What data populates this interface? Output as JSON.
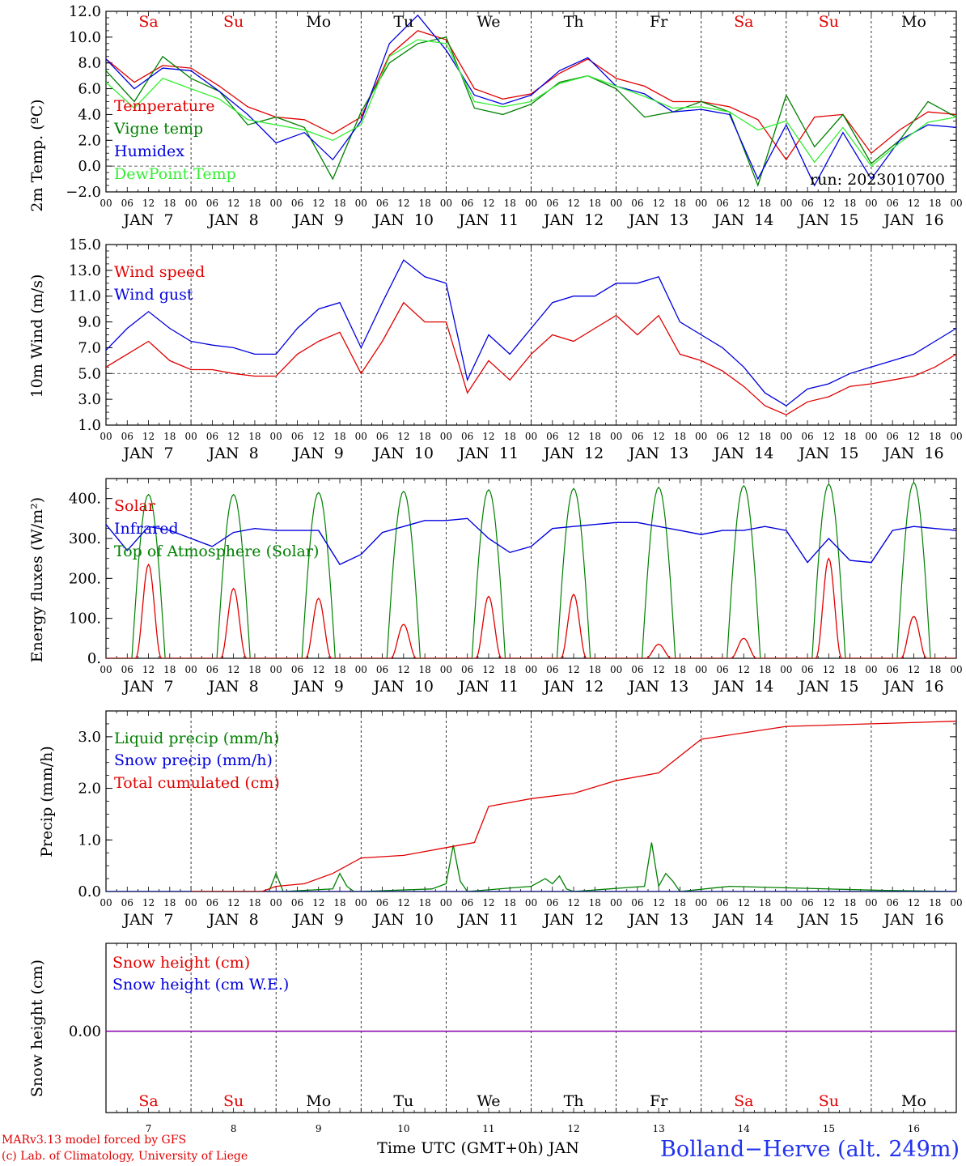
{
  "days": [
    "JAN  7",
    "JAN  8",
    "JAN  9",
    "JAN 10",
    "JAN 11",
    "JAN 12",
    "JAN 13",
    "JAN 14",
    "JAN 15",
    "JAN 16"
  ],
  "weekdays": [
    "Sa",
    "Su",
    "Mo",
    "Tu",
    "We",
    "Th",
    "Fr",
    "Sa",
    "Su",
    "Mo"
  ],
  "weekday_colors": [
    "#e00000",
    "#e00000",
    "#000000",
    "#000000",
    "#000000",
    "#000000",
    "#000000",
    "#e00000",
    "#e00000",
    "#000000"
  ],
  "day_numbers": [
    "7",
    "8",
    "9",
    "10",
    "11",
    "12",
    "13",
    "14",
    "15",
    "16"
  ],
  "hour_ticks": [
    "00",
    "06",
    "12",
    "18"
  ],
  "run_label": "run: 2023010700",
  "footer": {
    "credit_line1": "MARv3.13 model forced by GFS",
    "credit_line2": "(c) Lab. of Climatology, University of Liege",
    "time_label": "Time UTC (GMT+0h) JAN",
    "station": "Bolland−Herve (alt. 249m)"
  },
  "colors": {
    "red": "#e00000",
    "green": "#008000",
    "blue": "#0000dd",
    "lightgreen": "#33ee33",
    "purple": "#8800aa"
  },
  "chart_data": [
    {
      "type": "line",
      "ylabel": "2m Temp. (ºC)",
      "ylim": [
        -2,
        12
      ],
      "yticks": [
        "−2.0",
        "0.0",
        "2.0",
        "4.0",
        "6.0",
        "8.0",
        "10.0",
        "12.0"
      ],
      "yticks_values": [
        -2,
        0,
        2,
        4,
        6,
        8,
        10,
        12
      ],
      "dashed_reference": 0,
      "series": [
        {
          "name": "Temperature",
          "color": "#e00000",
          "x": [
            0,
            8,
            16,
            24,
            32,
            40,
            48,
            56,
            64,
            72,
            80,
            88,
            96,
            104,
            112,
            120,
            128,
            136,
            144,
            152,
            160,
            168,
            176,
            184,
            192,
            200,
            208,
            216,
            224,
            232,
            240
          ],
          "values": [
            8.3,
            6.5,
            7.8,
            7.6,
            6.2,
            4.6,
            3.8,
            3.6,
            2.5,
            3.8,
            8.6,
            10.5,
            9.8,
            6.0,
            5.2,
            5.6,
            7.2,
            8.3,
            6.8,
            6.2,
            5.0,
            5.0,
            4.6,
            3.6,
            0.5,
            3.8,
            4.0,
            1.0,
            2.8,
            4.2,
            4.0
          ]
        },
        {
          "name": "Vigne temp",
          "color": "#008000",
          "x": [
            0,
            8,
            16,
            24,
            32,
            40,
            48,
            56,
            64,
            72,
            80,
            88,
            96,
            104,
            112,
            120,
            128,
            136,
            144,
            152,
            160,
            168,
            176,
            184,
            192,
            200,
            208,
            216,
            224,
            232,
            240
          ],
          "values": [
            7.4,
            5.0,
            8.5,
            6.8,
            5.8,
            3.2,
            3.8,
            3.0,
            -1.0,
            4.2,
            8.0,
            9.5,
            10.0,
            4.5,
            4.0,
            4.8,
            6.5,
            7.0,
            6.0,
            3.8,
            4.2,
            5.0,
            4.2,
            -1.5,
            5.5,
            1.5,
            4.0,
            0.2,
            2.0,
            5.0,
            3.8
          ]
        },
        {
          "name": "Humidex",
          "color": "#0000dd",
          "x": [
            0,
            8,
            16,
            24,
            32,
            40,
            48,
            56,
            64,
            72,
            80,
            88,
            96,
            104,
            112,
            120,
            128,
            136,
            144,
            152,
            160,
            168,
            176,
            184,
            192,
            200,
            208,
            216,
            224,
            232,
            240
          ],
          "values": [
            8.3,
            6.0,
            7.6,
            7.4,
            5.8,
            4.0,
            1.8,
            2.6,
            0.5,
            3.5,
            9.5,
            11.7,
            9.0,
            5.5,
            4.8,
            5.5,
            7.4,
            8.4,
            6.2,
            5.6,
            4.2,
            4.4,
            4.0,
            -1.0,
            3.2,
            -1.5,
            2.6,
            -1.0,
            2.0,
            3.2,
            3.0
          ]
        },
        {
          "name": "DewPoint Temp",
          "color": "#33ee33",
          "x": [
            0,
            8,
            16,
            24,
            32,
            40,
            48,
            56,
            64,
            72,
            80,
            88,
            96,
            104,
            112,
            120,
            128,
            136,
            144,
            152,
            160,
            168,
            176,
            184,
            192,
            200,
            208,
            216,
            224,
            232,
            240
          ],
          "values": [
            6.5,
            4.5,
            6.8,
            6.0,
            5.2,
            3.6,
            3.2,
            2.8,
            2.0,
            3.2,
            8.5,
            9.8,
            9.5,
            5.0,
            4.6,
            5.0,
            6.4,
            7.0,
            6.2,
            5.4,
            4.5,
            4.6,
            4.2,
            2.8,
            3.5,
            0.3,
            3.0,
            0.0,
            1.8,
            3.4,
            3.8
          ]
        }
      ]
    },
    {
      "type": "line",
      "ylabel": "10m Wind (m/s)",
      "ylim": [
        1,
        15
      ],
      "yticks": [
        "1.0",
        "3.0",
        "5.0",
        "7.0",
        "9.0",
        "11.0",
        "13.0",
        "15.0"
      ],
      "yticks_values": [
        1,
        3,
        5,
        7,
        9,
        11,
        13,
        15
      ],
      "dashed_reference": 5,
      "series": [
        {
          "name": "Wind speed",
          "color": "#e00000",
          "x": [
            0,
            6,
            12,
            18,
            24,
            30,
            36,
            42,
            48,
            54,
            60,
            66,
            72,
            78,
            84,
            90,
            96,
            102,
            108,
            114,
            120,
            126,
            132,
            138,
            144,
            150,
            156,
            162,
            168,
            174,
            180,
            186,
            192,
            198,
            204,
            210,
            216,
            222,
            228,
            234,
            240
          ],
          "values": [
            5.5,
            6.5,
            7.5,
            6.0,
            5.3,
            5.3,
            5.0,
            4.8,
            4.8,
            6.5,
            7.5,
            8.2,
            5.0,
            7.5,
            10.5,
            9.0,
            9.0,
            3.5,
            6.0,
            4.5,
            6.5,
            8.0,
            7.5,
            8.5,
            9.5,
            8.0,
            9.5,
            6.5,
            6.0,
            5.2,
            4.0,
            2.5,
            1.8,
            2.8,
            3.2,
            4.0,
            4.2,
            4.5,
            4.8,
            5.5,
            6.5
          ]
        },
        {
          "name": "Wind gust",
          "color": "#0000dd",
          "x": [
            0,
            6,
            12,
            18,
            24,
            30,
            36,
            42,
            48,
            54,
            60,
            66,
            72,
            78,
            84,
            90,
            96,
            102,
            108,
            114,
            120,
            126,
            132,
            138,
            144,
            150,
            156,
            162,
            168,
            174,
            180,
            186,
            192,
            198,
            204,
            210,
            216,
            222,
            228,
            234,
            240
          ],
          "values": [
            6.8,
            8.5,
            9.8,
            8.5,
            7.5,
            7.2,
            7.0,
            6.5,
            6.5,
            8.5,
            10.0,
            10.5,
            7.0,
            10.5,
            13.8,
            12.5,
            12.0,
            4.5,
            8.0,
            6.5,
            8.5,
            10.5,
            11.0,
            11.0,
            12.0,
            12.0,
            12.5,
            9.0,
            8.0,
            7.0,
            5.5,
            3.5,
            2.5,
            3.8,
            4.2,
            5.0,
            5.5,
            6.0,
            6.5,
            7.5,
            8.5
          ]
        }
      ]
    },
    {
      "type": "line",
      "ylabel": "Energy fluxes (W/m²)",
      "ylim": [
        0,
        450
      ],
      "yticks": [
        "0.",
        "100.",
        "200.",
        "300.",
        "400."
      ],
      "yticks_values": [
        0,
        100,
        200,
        300,
        400
      ],
      "series": [
        {
          "name": "Solar",
          "color": "#e00000",
          "peaks": [
            235,
            175,
            150,
            85,
            155,
            160,
            35,
            50,
            250,
            105
          ]
        },
        {
          "name": "Infrared",
          "color": "#0000dd",
          "x": [
            0,
            6,
            12,
            18,
            24,
            30,
            36,
            42,
            48,
            54,
            60,
            66,
            72,
            78,
            84,
            90,
            96,
            102,
            108,
            114,
            120,
            126,
            132,
            138,
            144,
            150,
            156,
            162,
            168,
            174,
            180,
            186,
            192,
            198,
            204,
            210,
            216,
            222,
            228,
            234,
            240
          ],
          "values": [
            335,
            270,
            330,
            320,
            300,
            280,
            315,
            325,
            320,
            320,
            320,
            235,
            260,
            315,
            330,
            345,
            345,
            350,
            300,
            265,
            280,
            325,
            330,
            335,
            340,
            340,
            330,
            320,
            310,
            320,
            320,
            330,
            320,
            240,
            300,
            245,
            240,
            320,
            330,
            325,
            320
          ]
        },
        {
          "name": "Top of Atmosphere (Solar)",
          "color": "#008000",
          "peaks": [
            410,
            410,
            415,
            418,
            422,
            425,
            428,
            432,
            436,
            440
          ]
        }
      ]
    },
    {
      "type": "line",
      "ylabel": "Precip (mm/h)",
      "ylim": [
        0,
        3.5
      ],
      "yticks": [
        "0.0",
        "1.0",
        "2.0",
        "3.0"
      ],
      "yticks_values": [
        0,
        1,
        2,
        3
      ],
      "series": [
        {
          "name": "Liquid precip (mm/h)",
          "color": "#008000",
          "x": [
            0,
            46,
            48,
            50,
            64,
            66,
            68,
            70,
            72,
            92,
            96,
            98,
            100,
            102,
            120,
            124,
            126,
            128,
            130,
            132,
            152,
            154,
            156,
            158,
            160,
            162,
            176,
            220,
            240
          ],
          "values": [
            0,
            0,
            0.35,
            0,
            0.05,
            0.35,
            0.1,
            0,
            0,
            0.05,
            0.15,
            0.9,
            0.2,
            0,
            0.1,
            0.25,
            0.15,
            0.3,
            0.05,
            0,
            0.1,
            0.95,
            0.1,
            0.35,
            0.2,
            0,
            0.1,
            0.02,
            0
          ]
        },
        {
          "name": "Snow precip (mm/h)",
          "color": "#0000dd",
          "x": [
            0,
            240
          ],
          "values": [
            0,
            0
          ]
        },
        {
          "name": "Total cumulated (cm)",
          "color": "#e00000",
          "x": [
            24,
            44,
            48,
            56,
            64,
            72,
            84,
            96,
            104,
            108,
            120,
            132,
            144,
            156,
            168,
            192,
            216,
            240
          ],
          "values": [
            0.0,
            0.0,
            0.1,
            0.15,
            0.35,
            0.65,
            0.7,
            0.85,
            0.95,
            1.65,
            1.8,
            1.9,
            2.15,
            2.3,
            2.95,
            3.2,
            3.25,
            3.3
          ]
        }
      ]
    },
    {
      "type": "line",
      "ylabel": "Snow height (cm)",
      "yticks": [
        "0.00"
      ],
      "series": [
        {
          "name": "Snow height (cm)",
          "color": "#e00000",
          "x": [
            0,
            240
          ],
          "values": [
            0,
            0
          ]
        },
        {
          "name": "Snow height (cm W.E.)",
          "color": "#0000dd",
          "x": [
            0,
            240
          ],
          "values": [
            0,
            0
          ]
        }
      ]
    }
  ]
}
